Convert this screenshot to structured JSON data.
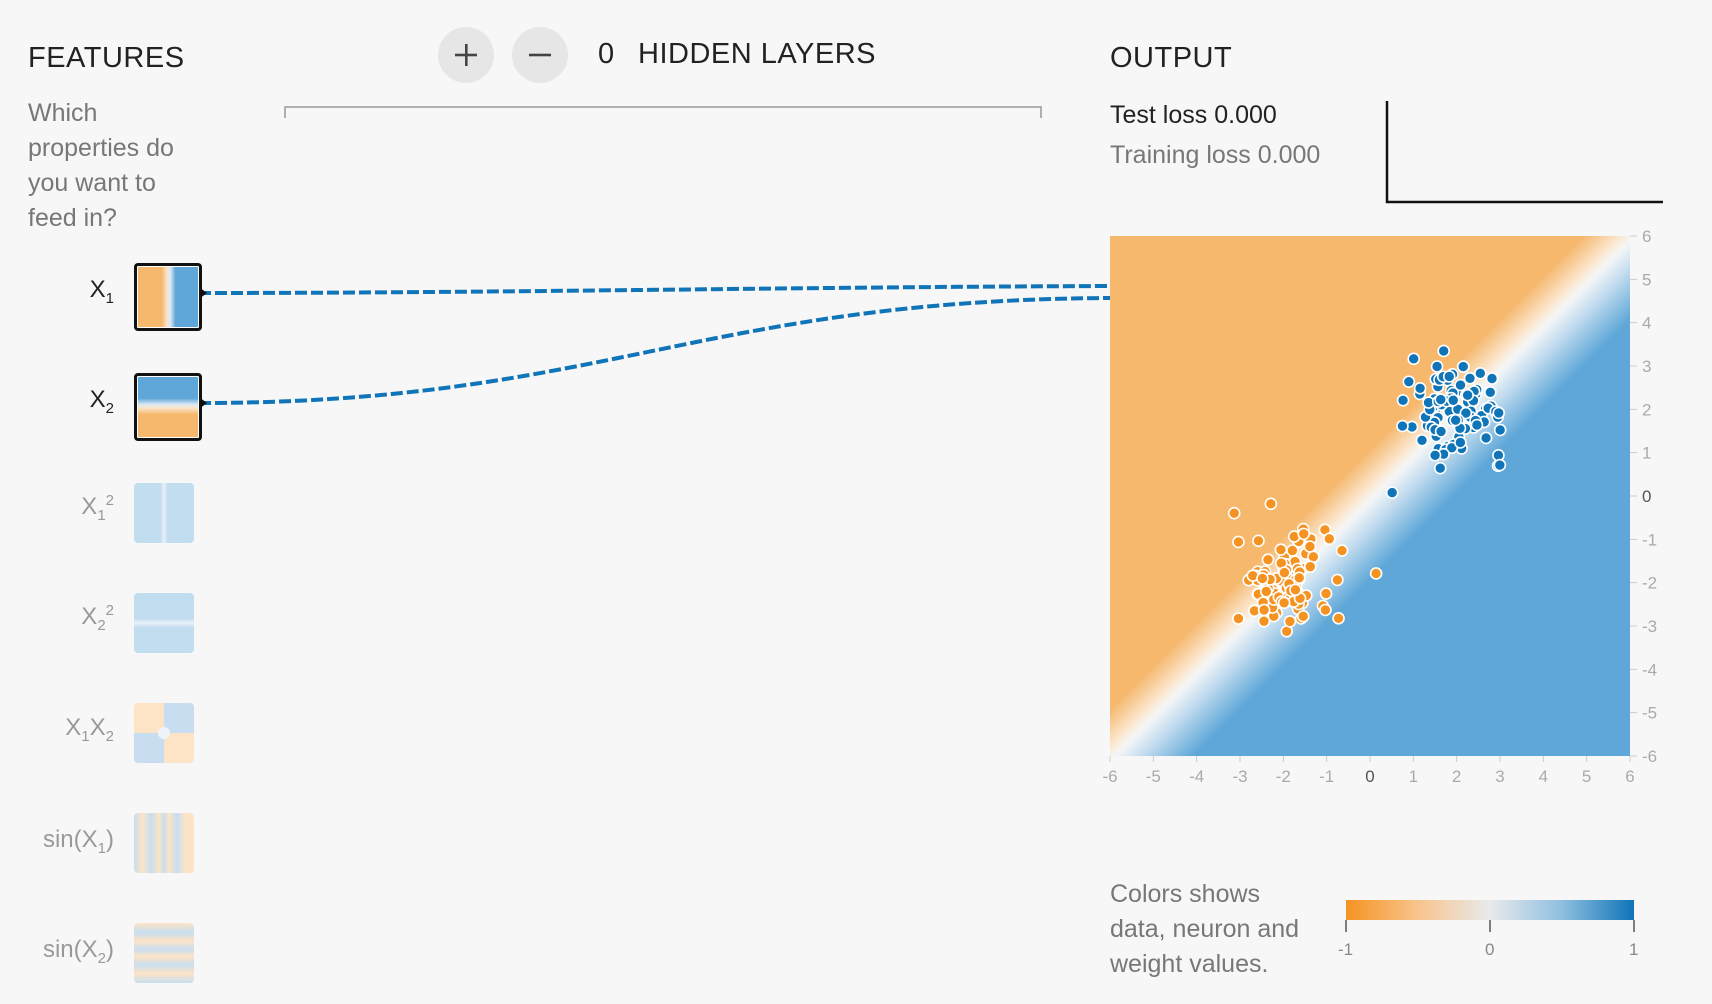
{
  "features": {
    "title": "FEATURES",
    "description_lines": [
      "Which",
      "properties do",
      "you want to",
      "feed in?"
    ],
    "items": [
      {
        "base": "X",
        "sub": "1",
        "sup": "",
        "active": true
      },
      {
        "base": "X",
        "sub": "2",
        "sup": "",
        "active": true
      },
      {
        "base": "X",
        "sub": "1",
        "sup": "2",
        "active": false
      },
      {
        "base": "X",
        "sub": "2",
        "sup": "2",
        "active": false
      },
      {
        "base": "X",
        "sub": "1",
        "sup": "",
        "base2": "X",
        "sub2": "2",
        "active": false
      },
      {
        "base": "sin(X",
        "sub": "1",
        "sup": "",
        "tail": ")",
        "active": false
      },
      {
        "base": "sin(X",
        "sub": "2",
        "sup": "",
        "tail": ")",
        "active": false
      }
    ]
  },
  "hidden_layers": {
    "count": "0",
    "label": "HIDDEN LAYERS",
    "add_icon": "plus-icon",
    "remove_icon": "minus-icon"
  },
  "output": {
    "title": "OUTPUT",
    "test_loss_label": "Test loss",
    "test_loss_value": "0.000",
    "training_loss_label": "Training loss",
    "training_loss_value": "0.000"
  },
  "plot": {
    "x_ticks": [
      "-6",
      "-5",
      "-4",
      "-3",
      "-2",
      "-1",
      "0",
      "1",
      "2",
      "3",
      "4",
      "5",
      "6"
    ],
    "y_ticks": [
      "6",
      "5",
      "4",
      "3",
      "2",
      "1",
      "0",
      "-1",
      "-2",
      "-3",
      "-4",
      "-5",
      "-6"
    ],
    "range": [
      -6,
      6
    ]
  },
  "legend": {
    "text_lines": [
      "Colors shows",
      "data, neuron and",
      "weight values."
    ],
    "min": "-1",
    "mid": "0",
    "max": "1"
  },
  "colors": {
    "orange": "#f5b86d",
    "blue": "#5fa7d8",
    "dark_blue": "#0f74b8",
    "dark_orange": "#f59322",
    "background": "#f7f7f7"
  }
}
